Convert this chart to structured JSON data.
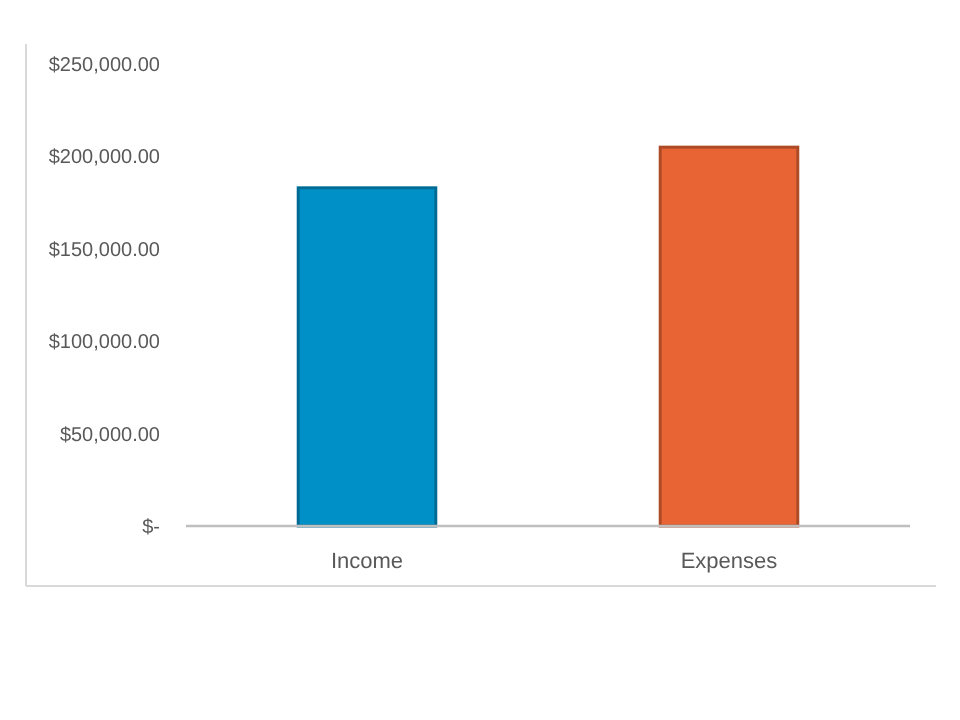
{
  "chart_data": {
    "type": "bar",
    "categories": [
      "Income",
      "Expenses"
    ],
    "values": [
      183000,
      205000
    ],
    "colors": [
      "#0090c8",
      "#e86434"
    ],
    "ylim": [
      0,
      250000
    ],
    "yticks": [
      {
        "value": 0,
        "label": "$-"
      },
      {
        "value": 50000,
        "label": "$50,000.00"
      },
      {
        "value": 100000,
        "label": "$100,000.00"
      },
      {
        "value": 150000,
        "label": "$150,000.00"
      },
      {
        "value": 200000,
        "label": "$200,000.00"
      },
      {
        "value": 250000,
        "label": "$250,000.00"
      }
    ],
    "grid": false
  }
}
